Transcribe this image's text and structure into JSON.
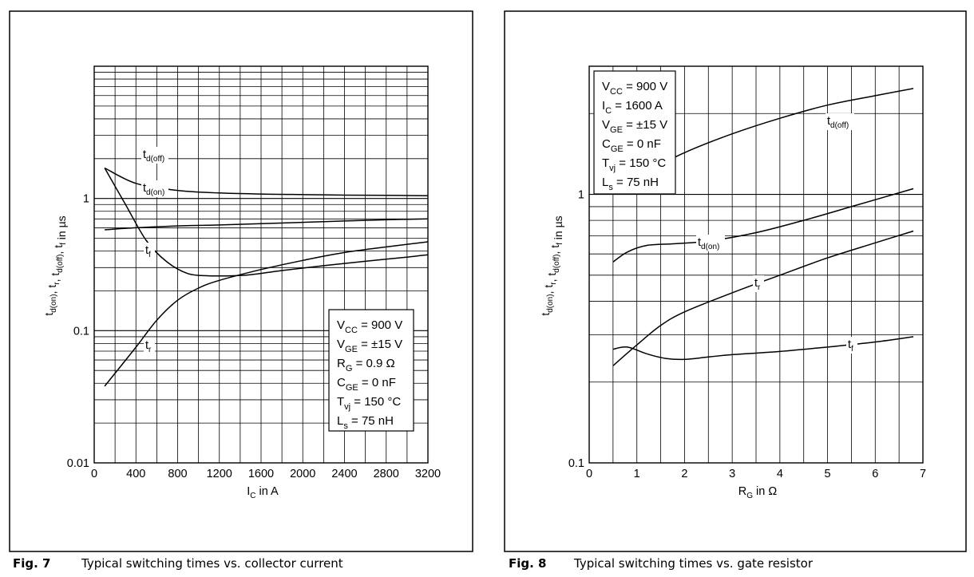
{
  "chart_data": [
    {
      "type": "line",
      "figure": "Fig. 7",
      "caption": "Typical switching times vs. collector current",
      "xlabel": "I_C in A",
      "ylabel": "t_d(on), t_r, t_d(off), t_f in µs",
      "xscale": "linear",
      "yscale": "log",
      "xlim": [
        0,
        3200
      ],
      "ylim": [
        0.01,
        10
      ],
      "x_ticks": [
        0,
        400,
        800,
        1200,
        1600,
        2000,
        2400,
        2800,
        3200
      ],
      "y_ticks": [
        0.01,
        0.1,
        1
      ],
      "y_tick_labels": [
        "0.01",
        "0.1",
        "1"
      ],
      "grid": true,
      "legend_placement": "bottom-right",
      "conditions": [
        {
          "sym": "V",
          "sub": "CC",
          "rest": " = 900 V"
        },
        {
          "sym": "V",
          "sub": "GE",
          "rest": " = ±15 V"
        },
        {
          "sym": "R",
          "sub": "G",
          "rest": " = 0.9 Ω"
        },
        {
          "sym": "C",
          "sub": "GE",
          "rest": " = 0 nF"
        },
        {
          "sym": "T",
          "sub": "vj",
          "rest": " = 150 °C"
        },
        {
          "sym": "L",
          "sub": "s",
          "rest": " = 75 nH"
        }
      ],
      "series": [
        {
          "name": "t_d(off)",
          "label_base": "t",
          "label_sub": "d(off)",
          "x": [
            100,
            400,
            800,
            1200,
            1600,
            2000,
            2400,
            2800,
            3200
          ],
          "y": [
            1.7,
            1.3,
            1.15,
            1.1,
            1.08,
            1.07,
            1.06,
            1.055,
            1.05
          ]
        },
        {
          "name": "t_d(on)",
          "label_base": "t",
          "label_sub": "d(on)",
          "x": [
            100,
            400,
            800,
            1200,
            1600,
            2000,
            2400,
            2800,
            3200
          ],
          "y": [
            0.58,
            0.6,
            0.62,
            0.63,
            0.645,
            0.66,
            0.675,
            0.69,
            0.7
          ]
        },
        {
          "name": "t_f",
          "label_base": "t",
          "label_sub": "f",
          "x": [
            100,
            300,
            500,
            700,
            900,
            1100,
            1300,
            1500,
            1800,
            2200,
            2600,
            3000,
            3200
          ],
          "y": [
            1.7,
            0.9,
            0.48,
            0.33,
            0.27,
            0.26,
            0.26,
            0.265,
            0.285,
            0.31,
            0.335,
            0.36,
            0.375
          ]
        },
        {
          "name": "t_r",
          "label_base": "t",
          "label_sub": "r",
          "x": [
            100,
            400,
            600,
            800,
            1000,
            1200,
            1600,
            2000,
            2400,
            2800,
            3200
          ],
          "y": [
            0.038,
            0.075,
            0.12,
            0.17,
            0.21,
            0.24,
            0.29,
            0.34,
            0.39,
            0.43,
            0.47
          ]
        }
      ]
    },
    {
      "type": "line",
      "figure": "Fig. 8",
      "caption": "Typical switching times vs. gate resistor",
      "xlabel": "R_G in Ω",
      "ylabel": "t_d(on), t_r, t_d(off), t_f in µs",
      "xscale": "linear",
      "yscale": "log",
      "xlim": [
        0,
        7
      ],
      "ylim": [
        0.1,
        3
      ],
      "x_ticks": [
        0,
        1,
        2,
        3,
        4,
        5,
        6,
        7
      ],
      "y_ticks": [
        0.1,
        1
      ],
      "y_tick_labels": [
        "0.1",
        "1"
      ],
      "grid": true,
      "legend_placement": "top-left",
      "conditions": [
        {
          "sym": "V",
          "sub": "CC",
          "rest": " = 900 V"
        },
        {
          "sym": "I",
          "sub": "C",
          "rest": " = 1600 A"
        },
        {
          "sym": "V",
          "sub": "GE",
          "rest": " = ±15 V"
        },
        {
          "sym": "C",
          "sub": "GE",
          "rest": " = 0 nF"
        },
        {
          "sym": "T",
          "sub": "vj",
          "rest": " = 150 °C"
        },
        {
          "sym": "L",
          "sub": "s",
          "rest": " = 75 nH"
        }
      ],
      "series": [
        {
          "name": "t_d(off)",
          "label_base": "t",
          "label_sub": "d(off)",
          "x": [
            0.5,
            1,
            1.5,
            2,
            3,
            4,
            5,
            6,
            6.8
          ],
          "y": [
            1.0,
            1.1,
            1.28,
            1.43,
            1.68,
            1.92,
            2.15,
            2.33,
            2.48
          ]
        },
        {
          "name": "t_d(on)",
          "label_base": "t",
          "label_sub": "d(on)",
          "x": [
            0.5,
            0.8,
            1.2,
            1.8,
            2.5,
            3.5,
            4.5,
            5.5,
            6.8
          ],
          "y": [
            0.56,
            0.61,
            0.645,
            0.655,
            0.67,
            0.72,
            0.8,
            0.9,
            1.05
          ]
        },
        {
          "name": "t_r",
          "label_base": "t",
          "label_sub": "r",
          "x": [
            0.5,
            1,
            1.5,
            2,
            3,
            4,
            5,
            6,
            6.8
          ],
          "y": [
            0.23,
            0.275,
            0.325,
            0.365,
            0.43,
            0.5,
            0.58,
            0.66,
            0.73
          ]
        },
        {
          "name": "t_f",
          "label_base": "t",
          "label_sub": "f",
          "x": [
            0.5,
            0.8,
            1.2,
            1.6,
            2,
            2.5,
            3,
            4,
            5,
            6,
            6.8
          ],
          "y": [
            0.265,
            0.27,
            0.255,
            0.245,
            0.243,
            0.248,
            0.253,
            0.26,
            0.27,
            0.282,
            0.295
          ]
        }
      ]
    }
  ]
}
